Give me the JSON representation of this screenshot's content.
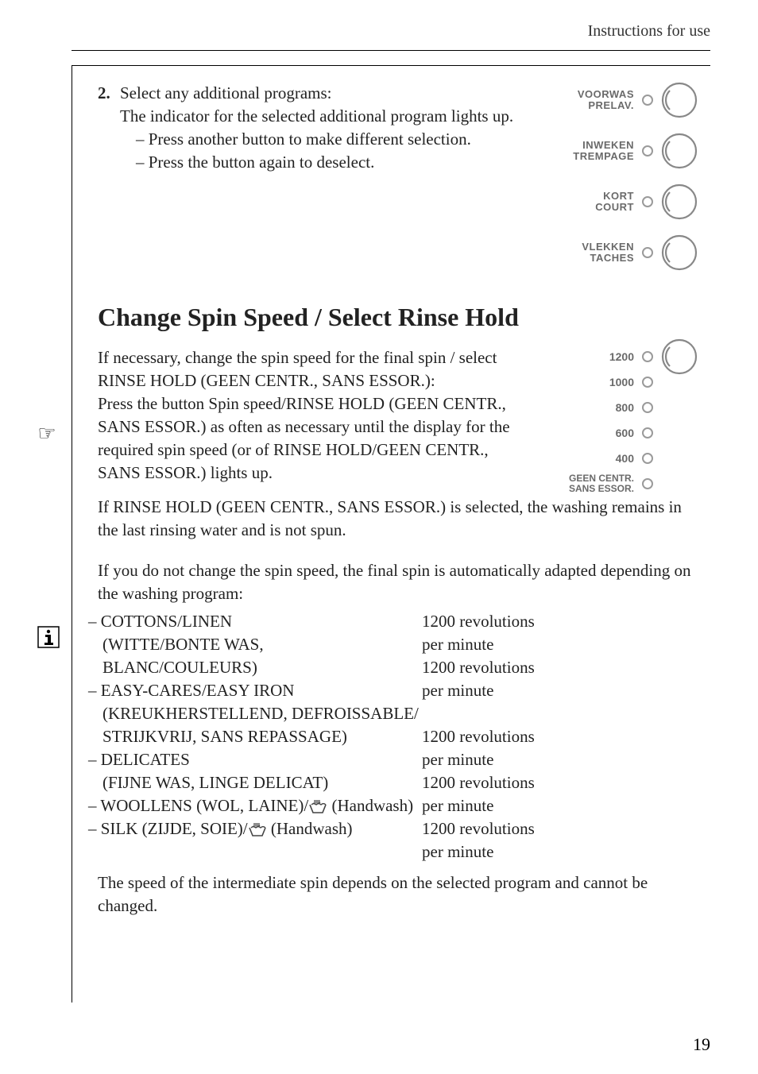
{
  "header": {
    "title": "Instructions for use"
  },
  "step2": {
    "num": "2.",
    "line1": "Select any additional programs:",
    "line2": "The indicator for the selected additional program lights up.",
    "dash1": "– Press another button to make different selection.",
    "dash2": "– Press the button again to deselect."
  },
  "option_panel": [
    {
      "l1": "VOORWAS",
      "l2": "PRELAV."
    },
    {
      "l1": "INWEKEN",
      "l2": "TREMPAGE"
    },
    {
      "l1": "KORT",
      "l2": "COURT"
    },
    {
      "l1": "VLEKKEN",
      "l2": "TACHES"
    }
  ],
  "h2": "Change Spin Speed / Select Rinse Hold",
  "spin_text": {
    "p1a": "If necessary, change the spin speed for the final spin / select RINSE HOLD (GEEN CENTR., SANS ESSOR.):",
    "p1b": "Press the button Spin speed/RINSE HOLD (GEEN CENTR., SANS ESSOR.) as often as necessary until the display for the required spin speed (or of RINSE HOLD/GEEN CENTR., SANS ESSOR.) lights up.",
    "p1c": "If RINSE HOLD (GEEN CENTR., SANS ESSOR.) is selected, the washing remains in the last rinsing water and is not spun."
  },
  "spin_panel": {
    "speeds": [
      "1200",
      "1000",
      "800",
      "600",
      "400"
    ],
    "hold_l1": "GEEN CENTR.",
    "hold_l2": "SANS ESSOR."
  },
  "info_text": "If you do not change the spin speed, the final spin is automatically adapted depending on the washing program:",
  "programs": [
    {
      "name": "– COTTONS/LINEN",
      "sub": "(WITTE/BONTE WAS, BLANC/COULEURS)",
      "rpm": "1200 revolutions per minute"
    },
    {
      "name": "– EASY-CARES/EASY IRON",
      "sub": "(KREUKHERSTELLEND, DEFROISSABLE/ STRIJKVRIJ, SANS REPASSAGE)",
      "rpm": "1200 revolutions per minute"
    },
    {
      "name": "– DELICATES",
      "sub": "(FIJNE WAS, LINGE DELICAT)",
      "rpm": "1200 revolutions per minute"
    },
    {
      "name_pre": "– WOOLLENS (WOL, LAINE)/",
      "name_post": " (Handwash)",
      "rpm": "1200 revolutions per minute",
      "handwash": true
    },
    {
      "name_pre": "– SILK (ZIJDE, SOIE)/",
      "name_post": " (Handwash)",
      "rpm": "1200 revolutions per minute",
      "handwash": true
    }
  ],
  "closing": "The speed of the intermediate spin depends on the selected program and cannot be changed.",
  "page_num": "19",
  "colors": {
    "panel_grey": "#6a6a6a",
    "indicator_border": "#9a9a9a"
  }
}
